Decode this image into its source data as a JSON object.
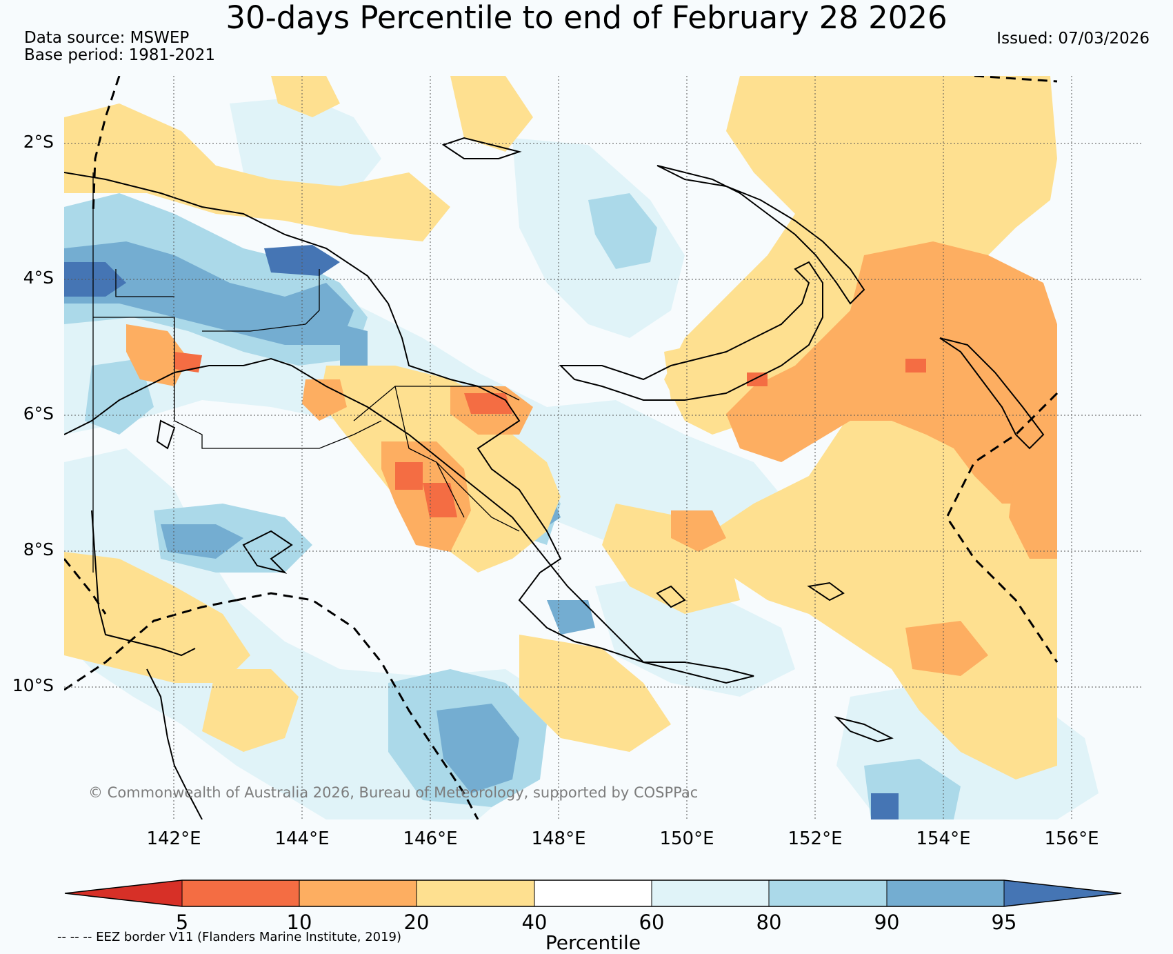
{
  "title": "30-days Percentile to end of February 28 2026",
  "data_source": "Data source: MSWEP",
  "base_period": "Base period: 1981-2021",
  "issued": "Issued: 07/03/2026",
  "latitude_labels": [
    "2°S",
    "4°S",
    "6°S",
    "8°S",
    "10°S"
  ],
  "longitude_labels": [
    "142°E",
    "144°E",
    "146°E",
    "148°E",
    "150°E",
    "152°E",
    "154°E",
    "156°E"
  ],
  "copyright": "© Commonwealth of Australia 2026, Bureau of Meteorology, supported by COSPPac",
  "colorbar": {
    "label": "Percentile",
    "ticks": [
      "5",
      "10",
      "20",
      "40",
      "60",
      "80",
      "90",
      "95"
    ],
    "colors": [
      "#d73027",
      "#f46d43",
      "#fdae61",
      "#fee090",
      "#ffffff",
      "#e0f3f8",
      "#abd9e9",
      "#74add1",
      "#4575b4"
    ]
  },
  "eez_note": "-- -- -- EEZ border V11 (Flanders Marine Institute, 2019)"
}
